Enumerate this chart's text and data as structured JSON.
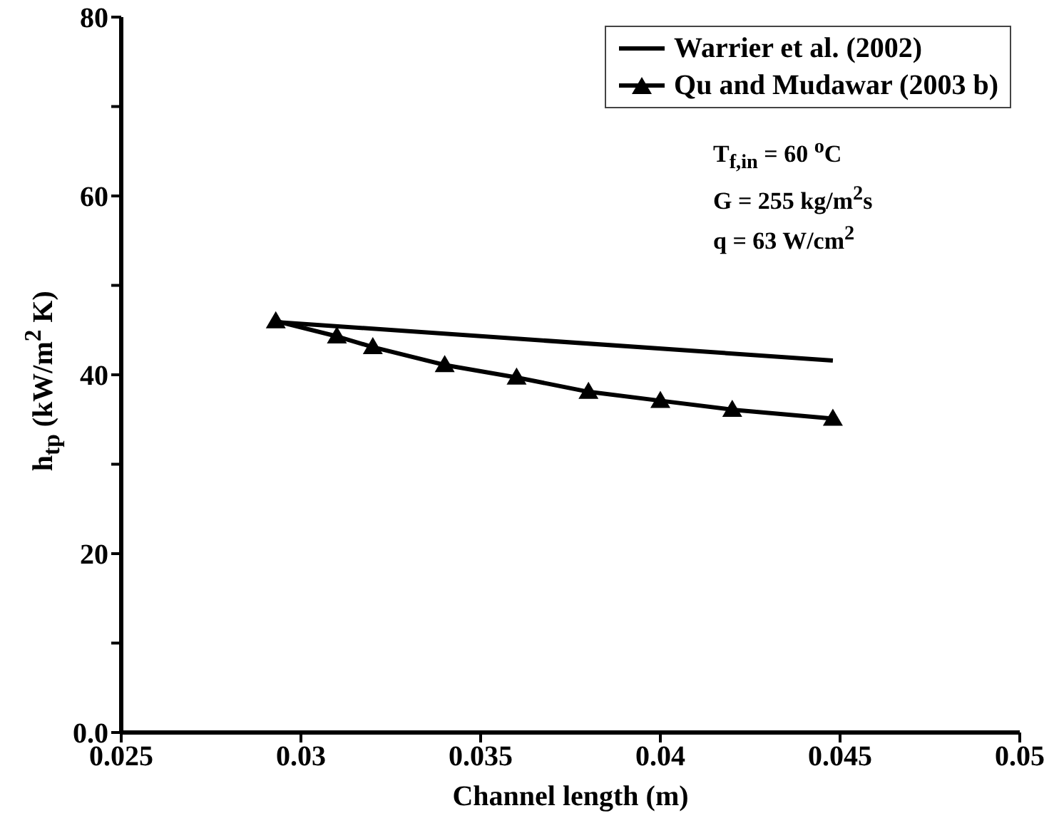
{
  "chart_data": {
    "type": "line",
    "xlabel": "Channel length (m)",
    "ylabel": "h$_{tp}$ (kW/m$^{2}$ K)",
    "annotations": [
      "T$_{f,in}$ = 60 $^{o}$C",
      "G = 255 kg/m$^{2}$s",
      "q = 63 W/cm$^{2}$"
    ],
    "xlim": [
      0.025,
      0.05
    ],
    "xticks": [
      0.025,
      0.03,
      0.035,
      0.04,
      0.045,
      0.05
    ],
    "ylim": [
      0,
      80
    ],
    "yticks": [
      {
        "value": 0,
        "label": "0.0"
      },
      {
        "value": 10,
        "label": null
      },
      20,
      {
        "value": 30,
        "label": null
      },
      40,
      {
        "value": 50,
        "label": null
      },
      60,
      {
        "value": 70,
        "label": null
      },
      80
    ],
    "grid": false,
    "legend": "top right",
    "line_style": "solid",
    "series": [
      {
        "name": "Warrier et al. (2002)",
        "color": "#000000",
        "x": [
          0.0293,
          0.0448
        ],
        "values": [
          45.9,
          41.6
        ]
      },
      {
        "name": "Qu and Mudawar (2003 b)",
        "color": "#000000",
        "marker": "triangle",
        "x": [
          0.0293,
          0.031,
          0.032,
          0.034,
          0.036,
          0.038,
          0.04,
          0.042,
          0.0448
        ],
        "values": [
          46,
          44.3,
          43.1,
          41.1,
          39.7,
          38.1,
          37.1,
          36.1,
          35.1
        ]
      }
    ]
  }
}
